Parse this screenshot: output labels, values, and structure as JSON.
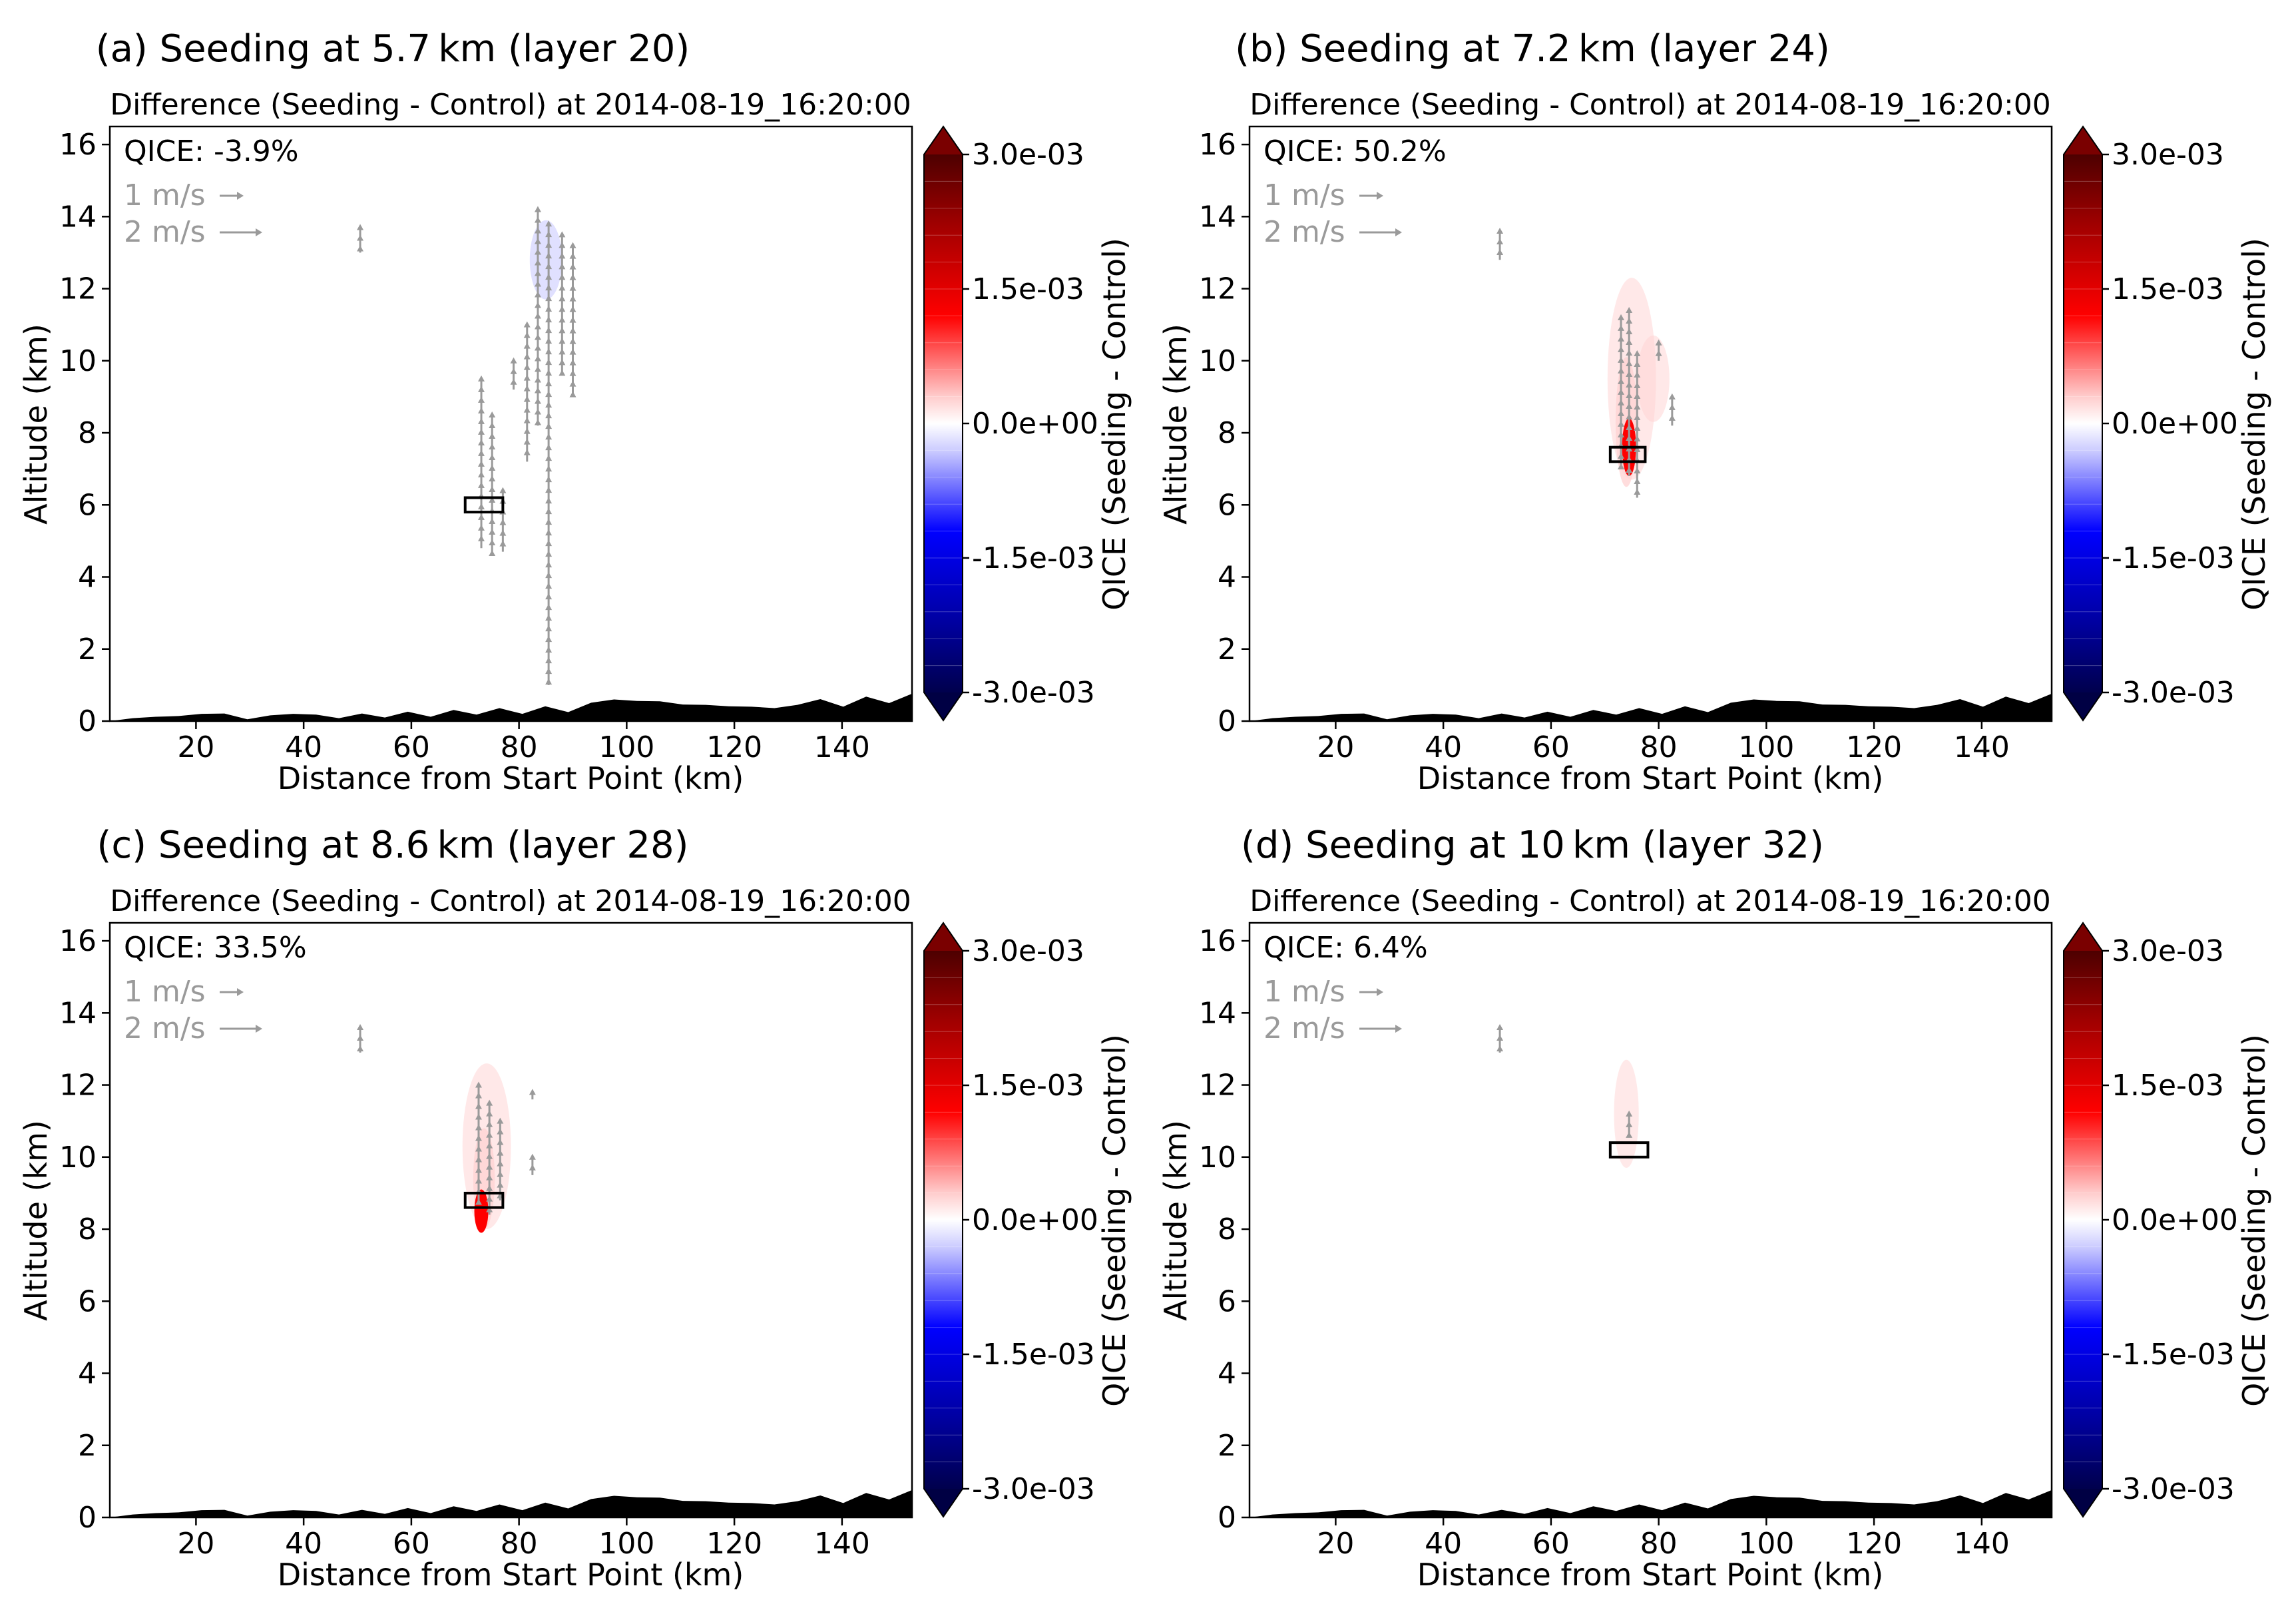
{
  "figure": {
    "colorbar_label": "QICE (Seeding - Control)",
    "colorbar_ticks": [
      "3.0e-03",
      "1.5e-03",
      "0.0e+00",
      "-1.5e-03",
      "-3.0e-03"
    ],
    "colors": {
      "arrow_gray": "#9a9a9a",
      "terrain": "#000000",
      "seed_box": "#000000",
      "pos_strong": "#7a0000",
      "pos_mid": "#ff0000",
      "pos_light": "#ffd2d2",
      "neg_light": "#d6d6ff",
      "neg_mid": "#0000ff",
      "neg_strong": "#000044"
    }
  },
  "chart_data": [
    {
      "type": "heatmap",
      "panel_title": "(a) Seeding at 5.7 km (layer 20)",
      "title": "Difference (Seeding - Control) at 2014-08-19_16:20:00",
      "xlabel": "Distance from Start Point (km)",
      "ylabel": "Altitude (km)",
      "xlim": [
        4,
        153
      ],
      "ylim": [
        0,
        16.5
      ],
      "xticks": [
        "20",
        "40",
        "60",
        "80",
        "100",
        "120",
        "140"
      ],
      "yticks": [
        "0",
        "2",
        "4",
        "6",
        "8",
        "10",
        "12",
        "14",
        "16"
      ],
      "colorbar_range": [
        -0.003,
        0.003
      ],
      "annotation": "QICE: -3.9%",
      "vector_key": [
        "1 m/s",
        "2 m/s"
      ],
      "seeding_box": {
        "x": [
          70,
          77
        ],
        "y": [
          5.8,
          6.2
        ]
      },
      "anomalies": [
        {
          "sign": "negative",
          "strength": 0.15,
          "x_center": 85,
          "y_center": 12.8,
          "x_halfwidth": 3,
          "y_halfwidth": 1.1
        }
      ],
      "vectors": [
        {
          "x": 50.5,
          "y": [
            13.0,
            13.7
          ]
        },
        {
          "x": 73,
          "y": [
            4.8,
            9.5
          ]
        },
        {
          "x": 75,
          "y": [
            4.6,
            8.5
          ]
        },
        {
          "x": 77,
          "y": [
            4.7,
            6.4
          ]
        },
        {
          "x": 79,
          "y": [
            9.2,
            10.0
          ]
        },
        {
          "x": 81.5,
          "y": [
            7.2,
            11.0
          ]
        },
        {
          "x": 83.5,
          "y": [
            8.2,
            14.2
          ]
        },
        {
          "x": 85.5,
          "y": [
            1.0,
            13.8
          ]
        },
        {
          "x": 88,
          "y": [
            9.6,
            13.5
          ]
        },
        {
          "x": 90,
          "y": [
            9.0,
            13.2
          ]
        }
      ],
      "terrain_km": [
        0,
        0.02,
        0.12,
        0.08,
        0.2,
        0.15,
        0.05,
        0.1,
        0.2,
        0.12,
        0.08,
        0.15,
        0.1,
        0.2,
        0.12,
        0.25,
        0.18,
        0.3,
        0.2,
        0.35,
        0.25,
        0.45,
        0.6,
        0.5,
        0.55,
        0.4,
        0.45,
        0.35,
        0.4,
        0.3,
        0.45,
        0.55,
        0.4,
        0.62,
        0.5,
        0.7
      ]
    },
    {
      "type": "heatmap",
      "panel_title": "(b) Seeding at 7.2 km (layer 24)",
      "title": "Difference (Seeding - Control) at 2014-08-19_16:20:00",
      "xlabel": "Distance from Start Point (km)",
      "ylabel": "Altitude (km)",
      "xlim": [
        4,
        153
      ],
      "ylim": [
        0,
        16.5
      ],
      "xticks": [
        "20",
        "40",
        "60",
        "80",
        "100",
        "120",
        "140"
      ],
      "yticks": [
        "0",
        "2",
        "4",
        "6",
        "8",
        "10",
        "12",
        "14",
        "16"
      ],
      "colorbar_range": [
        -0.003,
        0.003
      ],
      "annotation": "QICE: 50.2%",
      "vector_key": [
        "1 m/s",
        "2 m/s"
      ],
      "seeding_box": {
        "x": [
          71,
          77.5
        ],
        "y": [
          7.2,
          7.6
        ]
      },
      "anomalies": [
        {
          "sign": "positive",
          "strength": 0.2,
          "x_center": 75,
          "y_center": 9.5,
          "x_halfwidth": 4.5,
          "y_halfwidth": 2.8
        },
        {
          "sign": "positive",
          "strength": 0.2,
          "x_center": 79,
          "y_center": 9.5,
          "x_halfwidth": 3,
          "y_halfwidth": 1.2
        },
        {
          "sign": "positive",
          "strength": 0.55,
          "x_center": 74,
          "y_center": 8.3,
          "x_halfwidth": 2,
          "y_halfwidth": 1.8
        },
        {
          "sign": "positive",
          "strength": 0.9,
          "x_center": 74.5,
          "y_center": 7.6,
          "x_halfwidth": 1.3,
          "y_halfwidth": 0.8
        }
      ],
      "vectors": [
        {
          "x": 50.5,
          "y": [
            12.8,
            13.6
          ]
        },
        {
          "x": 73,
          "y": [
            7.0,
            11.2
          ]
        },
        {
          "x": 74.5,
          "y": [
            6.8,
            11.4
          ]
        },
        {
          "x": 76,
          "y": [
            6.2,
            10.2
          ]
        },
        {
          "x": 80,
          "y": [
            10.0,
            10.5
          ]
        },
        {
          "x": 82.5,
          "y": [
            8.2,
            9.0
          ]
        }
      ],
      "terrain_km": [
        0,
        0.02,
        0.12,
        0.08,
        0.2,
        0.15,
        0.05,
        0.1,
        0.2,
        0.12,
        0.08,
        0.15,
        0.1,
        0.2,
        0.12,
        0.25,
        0.18,
        0.3,
        0.2,
        0.35,
        0.25,
        0.45,
        0.6,
        0.5,
        0.55,
        0.4,
        0.45,
        0.35,
        0.4,
        0.3,
        0.45,
        0.55,
        0.4,
        0.62,
        0.5,
        0.7
      ]
    },
    {
      "type": "heatmap",
      "panel_title": "(c) Seeding at 8.6 km (layer 28)",
      "title": "Difference (Seeding - Control) at 2014-08-19_16:20:00",
      "xlabel": "Distance from Start Point (km)",
      "ylabel": "Altitude (km)",
      "xlim": [
        4,
        153
      ],
      "ylim": [
        0,
        16.5
      ],
      "xticks": [
        "20",
        "40",
        "60",
        "80",
        "100",
        "120",
        "140"
      ],
      "yticks": [
        "0",
        "2",
        "4",
        "6",
        "8",
        "10",
        "12",
        "14",
        "16"
      ],
      "colorbar_range": [
        -0.003,
        0.003
      ],
      "annotation": "QICE: 33.5%",
      "vector_key": [
        "1 m/s",
        "2 m/s"
      ],
      "seeding_box": {
        "x": [
          70,
          77
        ],
        "y": [
          8.6,
          9.0
        ]
      },
      "anomalies": [
        {
          "sign": "positive",
          "strength": 0.22,
          "x_center": 74,
          "y_center": 10.3,
          "x_halfwidth": 4.5,
          "y_halfwidth": 2.3
        },
        {
          "sign": "positive",
          "strength": 0.5,
          "x_center": 73.5,
          "y_center": 9.4,
          "x_halfwidth": 2,
          "y_halfwidth": 1.4
        },
        {
          "sign": "positive",
          "strength": 0.9,
          "x_center": 73,
          "y_center": 8.5,
          "x_halfwidth": 1.3,
          "y_halfwidth": 0.6
        }
      ],
      "vectors": [
        {
          "x": 50.5,
          "y": [
            12.9,
            13.6
          ]
        },
        {
          "x": 72.5,
          "y": [
            8.7,
            12.0
          ]
        },
        {
          "x": 74.5,
          "y": [
            8.4,
            11.5
          ]
        },
        {
          "x": 76.5,
          "y": [
            8.8,
            11.0
          ]
        },
        {
          "x": 82.5,
          "y": [
            9.5,
            10.0
          ]
        },
        {
          "x": 82.5,
          "y": [
            11.6,
            11.8
          ]
        }
      ],
      "terrain_km": [
        0,
        0.02,
        0.12,
        0.08,
        0.2,
        0.15,
        0.05,
        0.1,
        0.2,
        0.12,
        0.08,
        0.15,
        0.1,
        0.2,
        0.12,
        0.25,
        0.18,
        0.3,
        0.2,
        0.35,
        0.25,
        0.45,
        0.6,
        0.5,
        0.55,
        0.4,
        0.45,
        0.35,
        0.4,
        0.3,
        0.45,
        0.55,
        0.4,
        0.62,
        0.5,
        0.7
      ]
    },
    {
      "type": "heatmap",
      "panel_title": "(d) Seeding at 10 km (layer 32)",
      "title": "Difference (Seeding - Control) at 2014-08-19_16:20:00",
      "xlabel": "Distance from Start Point (km)",
      "ylabel": "Altitude (km)",
      "xlim": [
        4,
        153
      ],
      "ylim": [
        0,
        16.5
      ],
      "xticks": [
        "20",
        "40",
        "60",
        "80",
        "100",
        "120",
        "140"
      ],
      "yticks": [
        "0",
        "2",
        "4",
        "6",
        "8",
        "10",
        "12",
        "14",
        "16"
      ],
      "colorbar_range": [
        -0.003,
        0.003
      ],
      "annotation": "QICE: 6.4%",
      "vector_key": [
        "1 m/s",
        "2 m/s"
      ],
      "seeding_box": {
        "x": [
          71,
          78
        ],
        "y": [
          10.0,
          10.4
        ]
      },
      "anomalies": [
        {
          "sign": "positive",
          "strength": 0.18,
          "x_center": 74,
          "y_center": 11.2,
          "x_halfwidth": 2.3,
          "y_halfwidth": 1.5
        }
      ],
      "vectors": [
        {
          "x": 50.5,
          "y": [
            12.9,
            13.6
          ]
        },
        {
          "x": 74.5,
          "y": [
            10.6,
            11.2
          ]
        }
      ],
      "terrain_km": [
        0,
        0.02,
        0.12,
        0.08,
        0.2,
        0.15,
        0.05,
        0.1,
        0.2,
        0.12,
        0.08,
        0.15,
        0.1,
        0.2,
        0.12,
        0.25,
        0.18,
        0.3,
        0.2,
        0.35,
        0.25,
        0.45,
        0.6,
        0.5,
        0.55,
        0.4,
        0.45,
        0.35,
        0.4,
        0.3,
        0.45,
        0.55,
        0.4,
        0.62,
        0.5,
        0.7
      ]
    }
  ]
}
